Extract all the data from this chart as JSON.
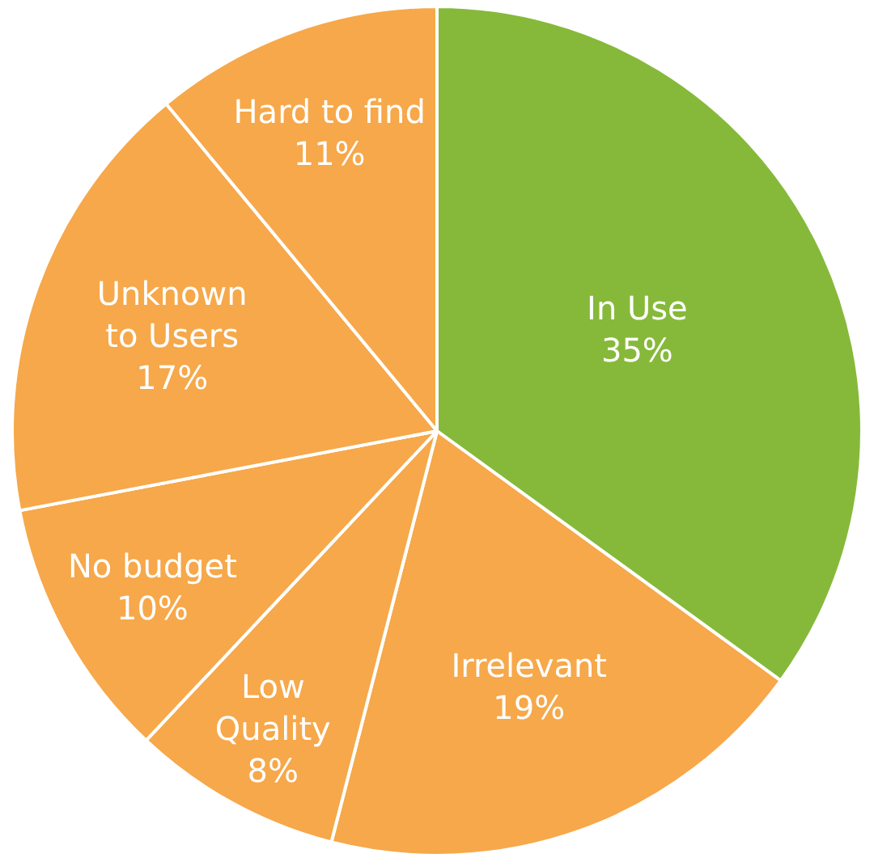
{
  "chart_data": {
    "type": "pie",
    "categories": [
      "In Use",
      "Irrelevant",
      "Low\nQuality",
      "No budget",
      "Unknown\nto Users",
      "Hard to find"
    ],
    "values": [
      35,
      19,
      8,
      10,
      17,
      11
    ],
    "value_labels": [
      "35%",
      "19%",
      "8%",
      "10%",
      "17%",
      "11%"
    ],
    "colors": [
      "#86b93a",
      "#f6a84a",
      "#f6a84a",
      "#f6a84a",
      "#f6a84a",
      "#f6a84a"
    ],
    "legend": false
  }
}
